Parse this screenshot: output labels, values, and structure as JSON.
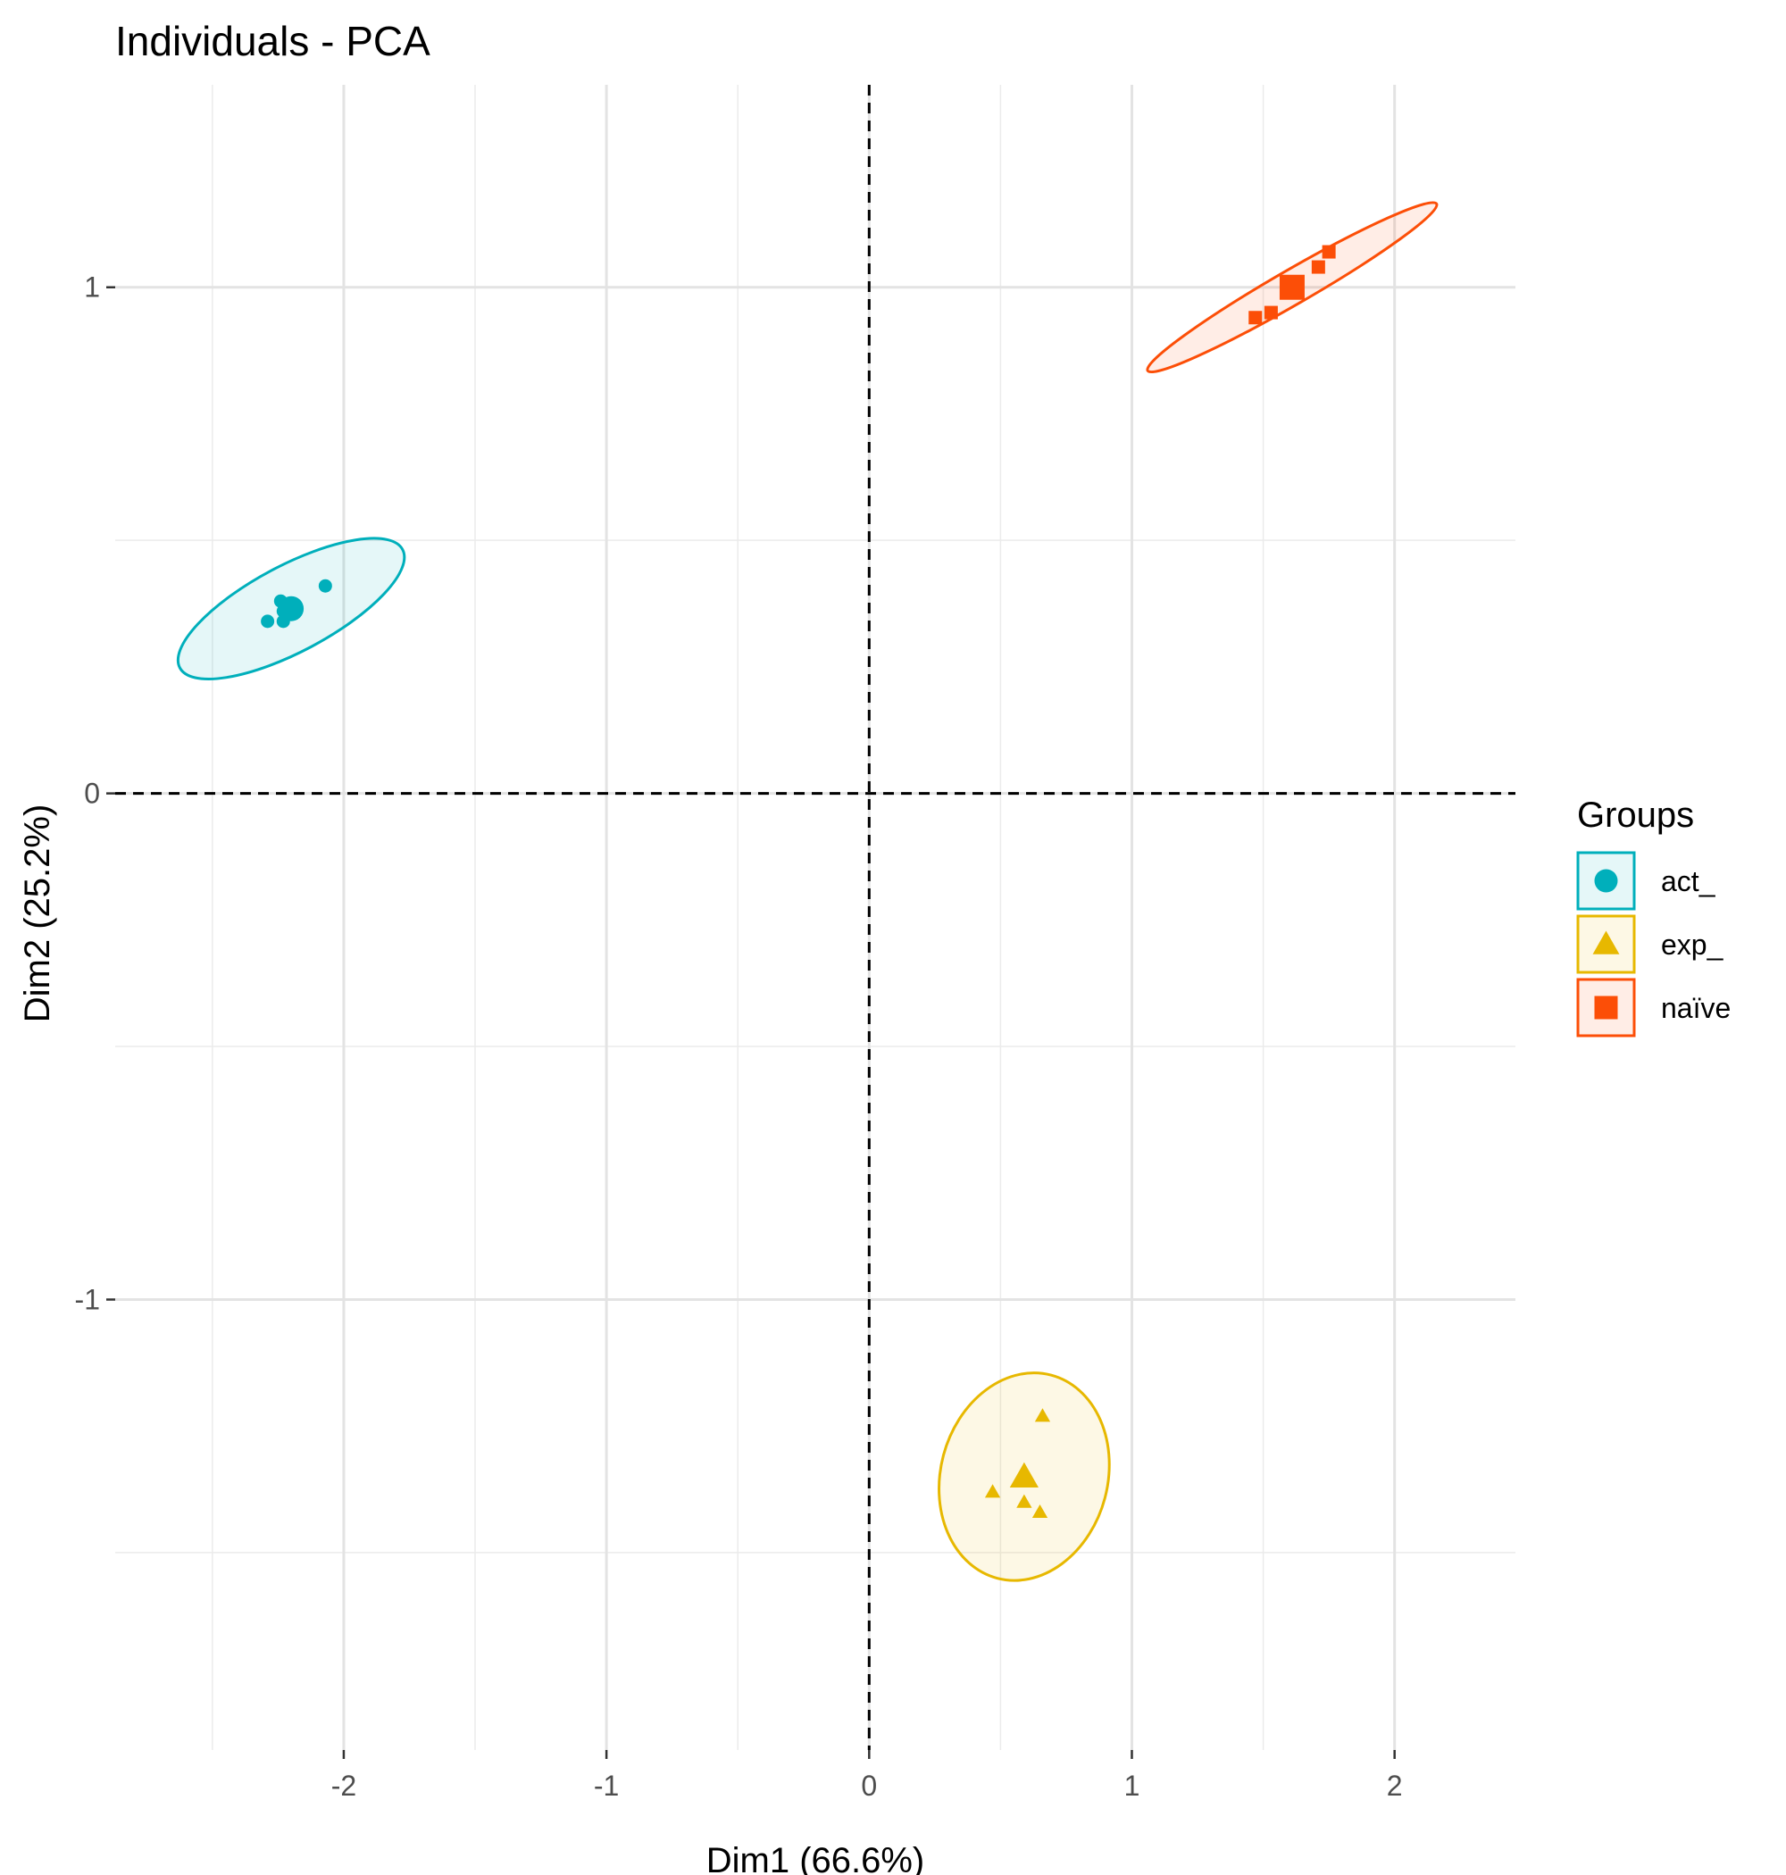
{
  "chart_data": {
    "type": "scatter",
    "title": "Individuals - PCA",
    "xlabel": "Dim1 (66.6%)",
    "ylabel": "Dim2 (25.2%)",
    "xlim": [
      -2.87,
      2.46
    ],
    "ylim": [
      -1.89,
      1.4
    ],
    "x_ticks": [
      -2,
      -1,
      0,
      1,
      2
    ],
    "y_ticks": [
      -1,
      0,
      1
    ],
    "x_tick_labels": [
      "-2",
      "-1",
      "0",
      "1",
      "2"
    ],
    "y_tick_labels": [
      "-1",
      "0",
      "1"
    ],
    "grid": true,
    "reference_lines": {
      "x": 0,
      "y": 0,
      "style": "dashed"
    },
    "legend": {
      "title": "Groups",
      "position": "right"
    },
    "series": [
      {
        "name": "act_",
        "color": "#00AFBB",
        "marker": "circle",
        "points": [
          {
            "x": -2.07,
            "y": 0.41
          },
          {
            "x": -2.24,
            "y": 0.38
          },
          {
            "x": -2.23,
            "y": 0.34
          },
          {
            "x": -2.29,
            "y": 0.34
          },
          {
            "x": -2.23,
            "y": 0.36
          }
        ],
        "centroid": {
          "x": -2.2,
          "y": 0.365
        },
        "ellipse": {
          "cx": -2.2,
          "cy": 0.365,
          "semi_major": 0.48,
          "semi_minor": 0.085,
          "angle_deg": 28
        }
      },
      {
        "name": "exp_",
        "color": "#E7B800",
        "marker": "triangle",
        "points": [
          {
            "x": 0.66,
            "y": -1.23
          },
          {
            "x": 0.47,
            "y": -1.38
          },
          {
            "x": 0.59,
            "y": -1.4
          },
          {
            "x": 0.65,
            "y": -1.42
          }
        ],
        "centroid": {
          "x": 0.59,
          "y": -1.35
        },
        "ellipse": {
          "cx": 0.59,
          "cy": -1.35,
          "semi_major": 0.4,
          "semi_minor": 0.165,
          "angle_deg": 75
        }
      },
      {
        "name": "naïve",
        "color": "#FC4E07",
        "marker": "square",
        "points": [
          {
            "x": 1.75,
            "y": 1.07
          },
          {
            "x": 1.71,
            "y": 1.04
          },
          {
            "x": 1.53,
            "y": 0.95
          },
          {
            "x": 1.47,
            "y": 0.94
          }
        ],
        "centroid": {
          "x": 1.61,
          "y": 1.0
        },
        "ellipse": {
          "cx": 1.61,
          "cy": 1.0,
          "semi_major": 0.635,
          "semi_minor": 0.034,
          "angle_deg": 30
        }
      }
    ]
  }
}
